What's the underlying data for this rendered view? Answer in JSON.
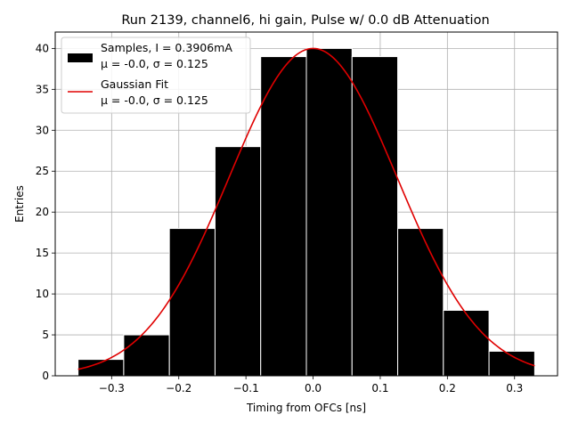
{
  "chart_data": {
    "type": "bar",
    "title": "Run 2139, channel6, hi gain, Pulse w/ 0.0 dB Attenuation",
    "xlabel": "Timing from OFCs [ns]",
    "ylabel": "Entries",
    "xlim": [
      -0.384,
      0.364
    ],
    "ylim": [
      0,
      42
    ],
    "grid": true,
    "x_ticks": [
      -0.3,
      -0.2,
      -0.1,
      0.0,
      0.1,
      0.2,
      0.3
    ],
    "x_tick_labels": [
      "−0.3",
      "−0.2",
      "−0.1",
      "0.0",
      "0.1",
      "0.2",
      "0.3"
    ],
    "y_ticks": [
      0,
      5,
      10,
      15,
      20,
      25,
      30,
      35,
      40
    ],
    "y_tick_labels": [
      "0",
      "5",
      "10",
      "15",
      "20",
      "25",
      "30",
      "35",
      "40"
    ],
    "bin_edges": [
      -0.35,
      -0.282,
      -0.214,
      -0.146,
      -0.078,
      -0.01,
      0.058,
      0.126,
      0.194,
      0.262,
      0.33
    ],
    "counts": [
      2,
      5,
      18,
      28,
      39,
      40,
      39,
      18,
      8,
      3
    ],
    "fit": {
      "mu": 0.0,
      "sigma": 0.125,
      "amplitude": 40,
      "x_range": [
        -0.35,
        0.33
      ],
      "color": "#e00000"
    },
    "bar_color": "#000000",
    "legend": {
      "location": "upper left",
      "samples_line1": "Samples, I = 0.3906mA",
      "samples_line2": "μ = -0.0, σ = 0.125",
      "fit_line1": "Gaussian Fit",
      "fit_line2": "μ = -0.0, σ = 0.125"
    }
  }
}
